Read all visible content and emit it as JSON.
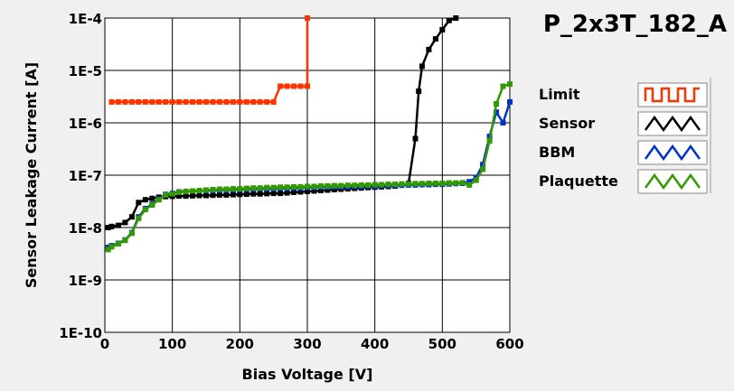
{
  "chart_data": {
    "type": "line",
    "title": "P_2x3T_182_A",
    "xlabel": "Bias Voltage [V]",
    "ylabel": "Sensor Leakage Current [A]",
    "xlim": [
      0,
      600
    ],
    "ylim": [
      1e-10,
      0.0001
    ],
    "y_scale": "log",
    "grid": true,
    "legend_position": "right",
    "x_ticks": [
      0,
      100,
      200,
      300,
      400,
      500,
      600
    ],
    "x_tick_labels": [
      "0",
      "100",
      "200",
      "300",
      "400",
      "500",
      "600"
    ],
    "y_ticks": [
      1e-10,
      1e-09,
      1e-08,
      1e-07,
      1e-06,
      1e-05,
      0.0001
    ],
    "y_tick_labels": [
      "1E-10",
      "1E-9",
      "1E-8",
      "1E-7",
      "1E-6",
      "1E-5",
      "1E-4"
    ],
    "series": [
      {
        "name": "Limit",
        "color": "#ff3300",
        "marker": "square",
        "x": [
          10,
          20,
          30,
          40,
          50,
          60,
          70,
          80,
          90,
          100,
          110,
          120,
          130,
          140,
          150,
          160,
          170,
          180,
          190,
          200,
          210,
          220,
          230,
          240,
          250,
          260,
          270,
          280,
          290,
          300,
          300
        ],
        "y": [
          2.5e-06,
          2.5e-06,
          2.5e-06,
          2.5e-06,
          2.5e-06,
          2.5e-06,
          2.5e-06,
          2.5e-06,
          2.5e-06,
          2.5e-06,
          2.5e-06,
          2.5e-06,
          2.5e-06,
          2.5e-06,
          2.5e-06,
          2.5e-06,
          2.5e-06,
          2.5e-06,
          2.5e-06,
          2.5e-06,
          2.5e-06,
          2.5e-06,
          2.5e-06,
          2.5e-06,
          2.5e-06,
          5e-06,
          5e-06,
          5e-06,
          5e-06,
          5e-06,
          0.0001
        ]
      },
      {
        "name": "Sensor",
        "color": "#000000",
        "marker": "square",
        "x": [
          5,
          10,
          20,
          30,
          40,
          50,
          60,
          70,
          80,
          90,
          100,
          110,
          120,
          130,
          140,
          150,
          160,
          170,
          180,
          190,
          200,
          210,
          220,
          230,
          240,
          250,
          260,
          270,
          280,
          290,
          300,
          310,
          320,
          330,
          340,
          350,
          360,
          370,
          380,
          390,
          400,
          410,
          420,
          430,
          440,
          450,
          460,
          465,
          470,
          480,
          490,
          500,
          510,
          520
        ],
        "y": [
          1e-08,
          1.05e-08,
          1.1e-08,
          1.25e-08,
          1.6e-08,
          3e-08,
          3.4e-08,
          3.6e-08,
          3.8e-08,
          3.9e-08,
          3.95e-08,
          4e-08,
          4e-08,
          4.05e-08,
          4.1e-08,
          4.1e-08,
          4.15e-08,
          4.2e-08,
          4.2e-08,
          4.25e-08,
          4.3e-08,
          4.35e-08,
          4.4e-08,
          4.4e-08,
          4.45e-08,
          4.5e-08,
          4.5e-08,
          4.6e-08,
          4.7e-08,
          4.8e-08,
          4.9e-08,
          5e-08,
          5.1e-08,
          5.2e-08,
          5.3e-08,
          5.4e-08,
          5.5e-08,
          5.6e-08,
          5.7e-08,
          5.8e-08,
          5.9e-08,
          6e-08,
          6.1e-08,
          6.2e-08,
          6.5e-08,
          7e-08,
          5e-07,
          4e-06,
          1.2e-05,
          2.5e-05,
          4e-05,
          6e-05,
          9e-05,
          0.0001
        ]
      },
      {
        "name": "BBM",
        "color": "#0033cc",
        "marker": "square",
        "x": [
          5,
          10,
          20,
          30,
          40,
          50,
          60,
          70,
          80,
          90,
          100,
          110,
          120,
          130,
          140,
          150,
          160,
          170,
          180,
          190,
          200,
          210,
          220,
          230,
          240,
          250,
          260,
          270,
          280,
          290,
          300,
          310,
          320,
          330,
          340,
          350,
          360,
          370,
          380,
          390,
          400,
          410,
          420,
          430,
          440,
          450,
          460,
          470,
          480,
          490,
          500,
          510,
          520,
          530,
          540,
          550,
          560,
          570,
          580,
          590,
          600
        ],
        "y": [
          4.2e-09,
          4.5e-09,
          5e-09,
          5.8e-09,
          8e-09,
          1.6e-08,
          2.3e-08,
          2.8e-08,
          3.5e-08,
          4.3e-08,
          4.5e-08,
          4.8e-08,
          4.9e-08,
          5e-08,
          5e-08,
          5.1e-08,
          5.1e-08,
          5.2e-08,
          5.2e-08,
          5.3e-08,
          5.3e-08,
          5.4e-08,
          5.4e-08,
          5.5e-08,
          5.5e-08,
          5.5e-08,
          5.6e-08,
          5.6e-08,
          5.7e-08,
          5.7e-08,
          5.8e-08,
          5.8e-08,
          5.9e-08,
          5.9e-08,
          6e-08,
          6e-08,
          6e-08,
          6.1e-08,
          6.1e-08,
          6.2e-08,
          6.2e-08,
          6.3e-08,
          6.3e-08,
          6.4e-08,
          6.4e-08,
          6.5e-08,
          6.5e-08,
          6.6e-08,
          6.6e-08,
          6.7e-08,
          6.7e-08,
          6.8e-08,
          6.9e-08,
          7e-08,
          7.5e-08,
          9e-08,
          1.6e-07,
          5.5e-07,
          1.6e-06,
          1e-06,
          2.5e-06
        ]
      },
      {
        "name": "Plaquette",
        "color": "#339900",
        "marker": "square",
        "x": [
          5,
          10,
          20,
          30,
          40,
          50,
          60,
          70,
          80,
          90,
          100,
          110,
          120,
          130,
          140,
          150,
          160,
          170,
          180,
          190,
          200,
          210,
          220,
          230,
          240,
          250,
          260,
          270,
          280,
          290,
          300,
          310,
          320,
          330,
          340,
          350,
          360,
          370,
          380,
          390,
          400,
          410,
          420,
          430,
          440,
          450,
          460,
          470,
          480,
          490,
          500,
          510,
          520,
          530,
          540,
          550,
          560,
          570,
          580,
          590,
          600
        ],
        "y": [
          3.8e-09,
          4.3e-09,
          4.9e-09,
          5.7e-09,
          7.8e-09,
          1.5e-08,
          2.2e-08,
          2.7e-08,
          3.4e-08,
          4.2e-08,
          4.4e-08,
          4.7e-08,
          4.9e-08,
          5e-08,
          5.1e-08,
          5.2e-08,
          5.3e-08,
          5.4e-08,
          5.4e-08,
          5.5e-08,
          5.5e-08,
          5.6e-08,
          5.7e-08,
          5.7e-08,
          5.8e-08,
          5.8e-08,
          5.9e-08,
          5.9e-08,
          6e-08,
          6e-08,
          6.1e-08,
          6.1e-08,
          6.2e-08,
          6.2e-08,
          6.3e-08,
          6.3e-08,
          6.4e-08,
          6.4e-08,
          6.5e-08,
          6.5e-08,
          6.6e-08,
          6.6e-08,
          6.7e-08,
          6.7e-08,
          6.8e-08,
          6.8e-08,
          6.9e-08,
          6.9e-08,
          7e-08,
          7e-08,
          7e-08,
          7.1e-08,
          7.1e-08,
          7.2e-08,
          6.5e-08,
          8e-08,
          1.3e-07,
          4.5e-07,
          2.3e-06,
          5e-06,
          5.5e-06
        ]
      }
    ]
  }
}
